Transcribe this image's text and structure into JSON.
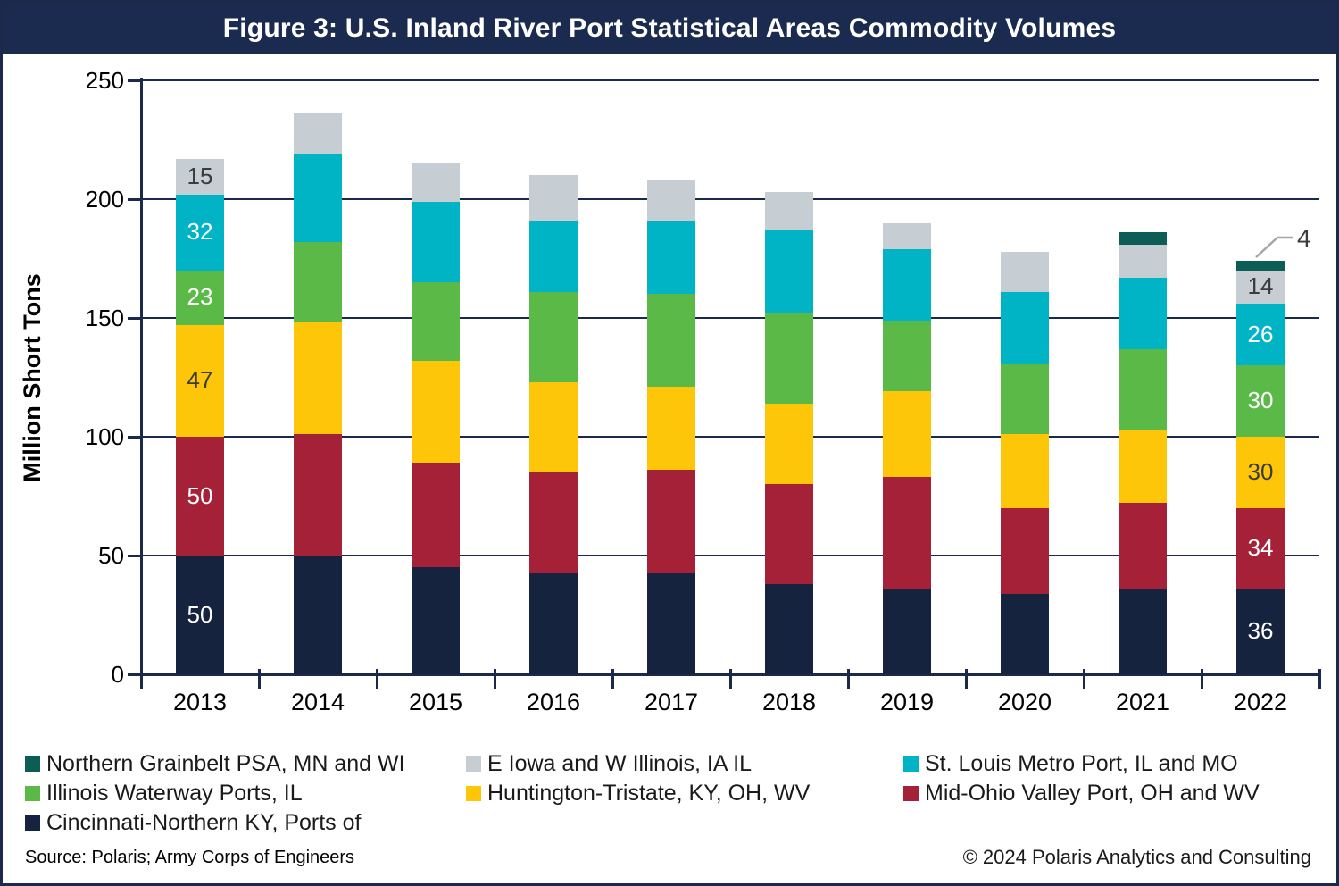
{
  "title": "Figure 3: U.S. Inland River Port Statistical Areas Commodity Volumes",
  "footer": {
    "source_note": "Source: Polaris; Army Corps of Engineers",
    "copyright": "© 2024 Polaris Analytics and Consulting"
  },
  "colors": {
    "frame_navy": "#1b2a4a",
    "title_bg": "#1b2a4f",
    "label_light": "#ffffff",
    "label_dark": "#3b3b3b",
    "callout_line": "#a6a6a6"
  },
  "chart_data": {
    "type": "bar",
    "stacked": true,
    "ylabel": "Million Short Tons",
    "ylim": [
      0,
      250
    ],
    "yticks": [
      0,
      50,
      100,
      150,
      200,
      250
    ],
    "grid": true,
    "legend_position": "bottom",
    "categories": [
      "2013",
      "2014",
      "2015",
      "2016",
      "2017",
      "2018",
      "2019",
      "2020",
      "2021",
      "2022"
    ],
    "series": [
      {
        "name": "Cincinnati-Northern KY, Ports of",
        "color": "#16233e",
        "label_color": "#ffffff",
        "values": [
          50,
          50,
          45,
          43,
          43,
          38,
          36,
          34,
          36,
          36
        ]
      },
      {
        "name": "Mid-Ohio Valley Port, OH and WV",
        "color": "#a42138",
        "label_color": "#ffffff",
        "values": [
          50,
          51,
          44,
          42,
          43,
          42,
          47,
          36,
          36,
          34
        ]
      },
      {
        "name": "Huntington-Tristate, KY, OH, WV",
        "color": "#fdc608",
        "label_color": "#3b3b3b",
        "values": [
          47,
          47,
          43,
          38,
          35,
          34,
          36,
          31,
          31,
          30
        ]
      },
      {
        "name": "Illinois Waterway Ports, IL",
        "color": "#5bba47",
        "label_color": "#ffffff",
        "values": [
          23,
          34,
          33,
          38,
          39,
          38,
          30,
          30,
          34,
          30
        ]
      },
      {
        "name": "St. Louis Metro Port, IL and MO",
        "color": "#00b4c5",
        "label_color": "#ffffff",
        "values": [
          32,
          37,
          34,
          30,
          31,
          35,
          30,
          30,
          30,
          26
        ]
      },
      {
        "name": "E Iowa and W Illinois, IA IL",
        "color": "#c6cdd3",
        "label_color": "#3b3b3b",
        "values": [
          15,
          17,
          16,
          19,
          17,
          16,
          11,
          17,
          14,
          14
        ]
      },
      {
        "name": "Northern Grainbelt PSA, MN and WI",
        "color": "#0b5d56",
        "label_color": "#ffffff",
        "values": [
          0,
          0,
          0,
          0,
          0,
          0,
          0,
          0,
          5,
          4
        ]
      }
    ],
    "show_labels_for": [
      "2013",
      "2022"
    ],
    "callout": {
      "category": "2022",
      "series": "Northern Grainbelt PSA, MN and WI",
      "label": "4"
    }
  },
  "legend": {
    "columns": [
      {
        "items": [
          {
            "label": "Northern Grainbelt PSA, MN and WI",
            "color": "#0b5d56"
          },
          {
            "label": "Illinois Waterway Ports, IL",
            "color": "#5bba47"
          },
          {
            "label": "Cincinnati-Northern KY, Ports of",
            "color": "#16233e"
          }
        ]
      },
      {
        "items": [
          {
            "label": "E Iowa and W Illinois, IA IL",
            "color": "#c6cdd3"
          },
          {
            "label": "Huntington-Tristate, KY, OH, WV",
            "color": "#fdc608"
          }
        ]
      },
      {
        "items": [
          {
            "label": "St. Louis Metro Port, IL and MO",
            "color": "#00b4c5"
          },
          {
            "label": "Mid-Ohio Valley Port, OH and WV",
            "color": "#a42138"
          }
        ]
      }
    ]
  }
}
